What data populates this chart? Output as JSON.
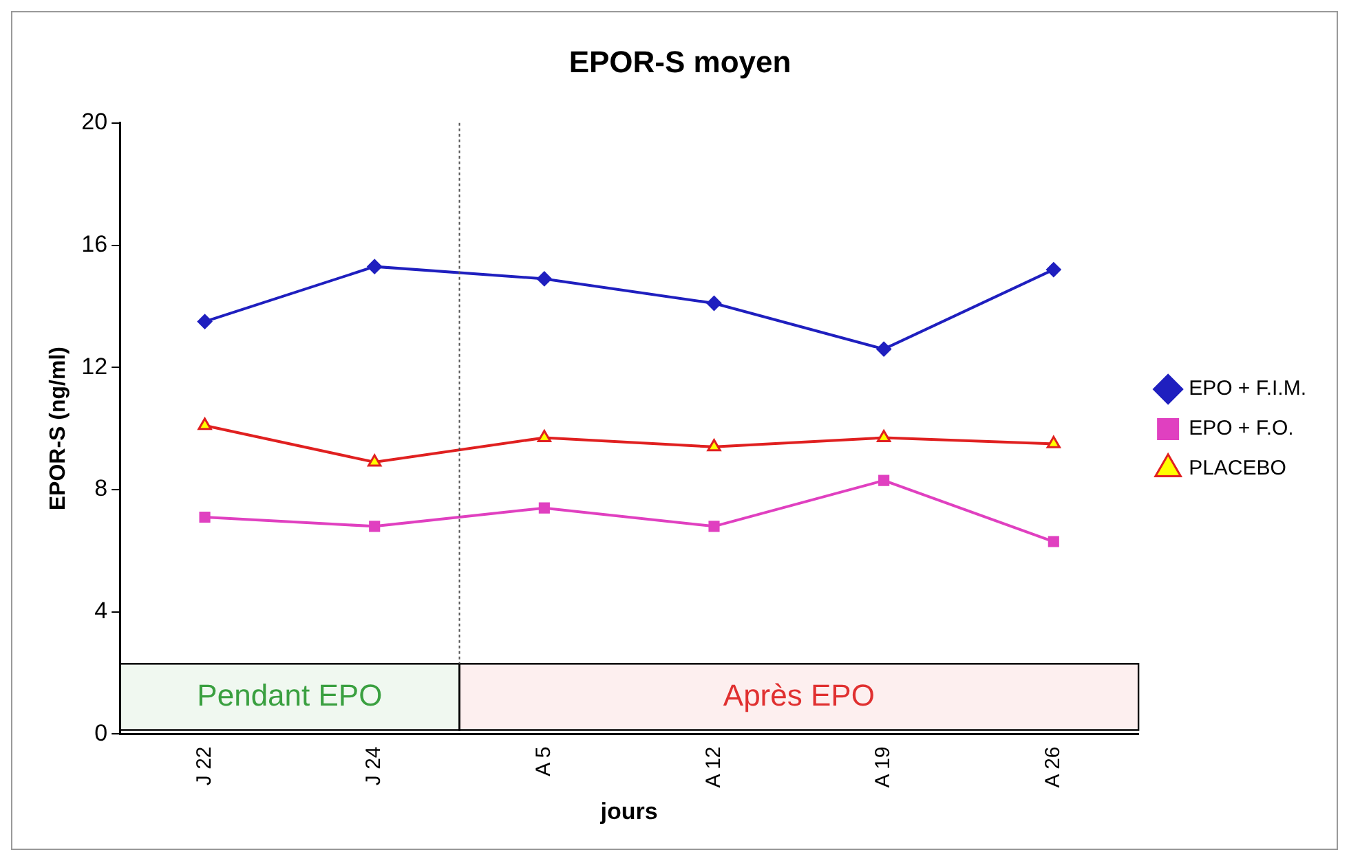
{
  "chart_data": {
    "type": "line",
    "title": "EPOR-S moyen",
    "xlabel": "jours",
    "ylabel": "EPOR-S (ng/ml)",
    "categories": [
      "J 22",
      "J 24",
      "A 5",
      "A 12",
      "A 19",
      "A 26"
    ],
    "series": [
      {
        "name": "EPO + F.I.M.",
        "color": "#1f1fbf",
        "marker": "diamond",
        "values": [
          13.5,
          15.3,
          14.9,
          14.1,
          12.6,
          15.2
        ]
      },
      {
        "name": "EPO + F.O.",
        "color": "#e040c0",
        "marker": "square",
        "values": [
          7.1,
          6.8,
          7.4,
          6.8,
          8.3,
          6.3
        ]
      },
      {
        "name": "PLACEBO",
        "color": "#e02020",
        "marker": "triangle",
        "values": [
          10.1,
          8.9,
          9.7,
          9.4,
          9.7,
          9.5
        ]
      }
    ],
    "ylim": [
      0,
      20
    ],
    "yticks": [
      0,
      4,
      8,
      12,
      16,
      20
    ],
    "grid": false,
    "legend": "right",
    "bands": [
      {
        "axis": "x",
        "from": "J 22",
        "to": "J 24",
        "label": "Pendant EPO",
        "color": "#3aa040"
      },
      {
        "axis": "x",
        "from": "A 5",
        "to": "A 26",
        "label": "Après EPO",
        "color": "#e03030"
      }
    ]
  }
}
